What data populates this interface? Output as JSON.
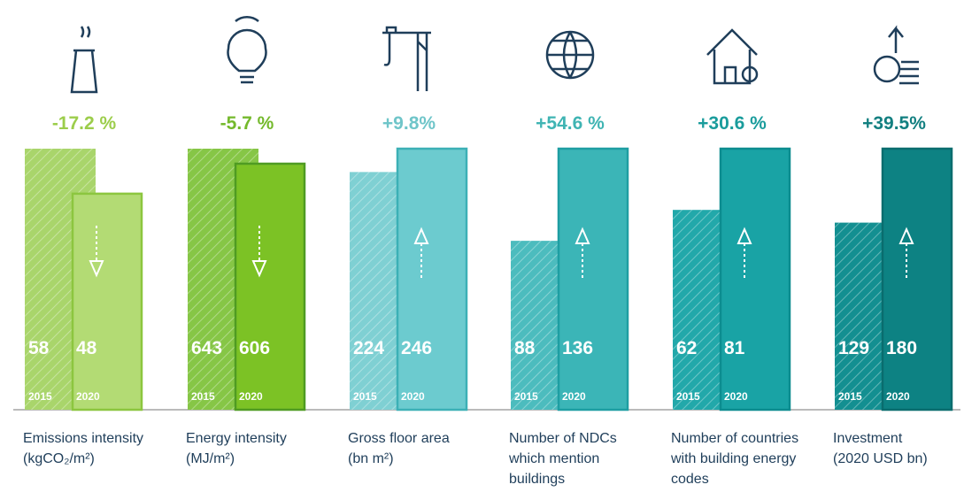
{
  "chart_data": [
    {
      "type": "bar",
      "title": [
        "Emissions intensity",
        "(kgCO₂/m²)"
      ],
      "subtitle": "-17.2 %",
      "categories": [
        "2015",
        "2020"
      ],
      "values": [
        58,
        48
      ],
      "colors": [
        "#a9d56b",
        "#b3db74"
      ],
      "edge": "#8cc63f",
      "accent": "#9ccd4b"
    },
    {
      "type": "bar",
      "title": [
        "Energy intensity",
        "(MJ/m²)"
      ],
      "subtitle": "-5.7 %",
      "categories": [
        "2015",
        "2020"
      ],
      "values": [
        643,
        606
      ],
      "colors": [
        "#86c646",
        "#7cc225"
      ],
      "edge": "#4f9b22",
      "accent": "#74b92c"
    },
    {
      "type": "bar",
      "title": [
        "Gross floor area",
        "(bn m²)"
      ],
      "subtitle": "+9.8%",
      "categories": [
        "2015",
        "2020"
      ],
      "values": [
        224,
        246
      ],
      "colors": [
        "#7fd0d3",
        "#6ccbcf"
      ],
      "edge": "#3cb0b6",
      "accent": "#6fc5c9"
    },
    {
      "type": "bar",
      "title": [
        "Number of NDCs",
        "which mention",
        "buildings"
      ],
      "subtitle": "+54.6 %",
      "categories": [
        "2015",
        "2020"
      ],
      "values": [
        88,
        136
      ],
      "colors": [
        "#4cbcbe",
        "#3bb5b7"
      ],
      "edge": "#1e9ea2",
      "accent": "#3fb4b3"
    },
    {
      "type": "bar",
      "title": [
        "Number of countries",
        "with building energy",
        "codes"
      ],
      "subtitle": "+30.6 %",
      "categories": [
        "2015",
        "2020"
      ],
      "values": [
        62,
        81
      ],
      "colors": [
        "#22a8aa",
        "#19a3a5"
      ],
      "edge": "#0c8c8f",
      "accent": "#1a9c9c"
    },
    {
      "type": "bar",
      "title": [
        "Investment",
        "(2020 USD bn)"
      ],
      "subtitle": "+39.5%",
      "categories": [
        "2015",
        "2020"
      ],
      "values": [
        129,
        180
      ],
      "colors": [
        "#138f91",
        "#0d8283"
      ],
      "edge": "#0a6d6e",
      "accent": "#127f80"
    }
  ]
}
